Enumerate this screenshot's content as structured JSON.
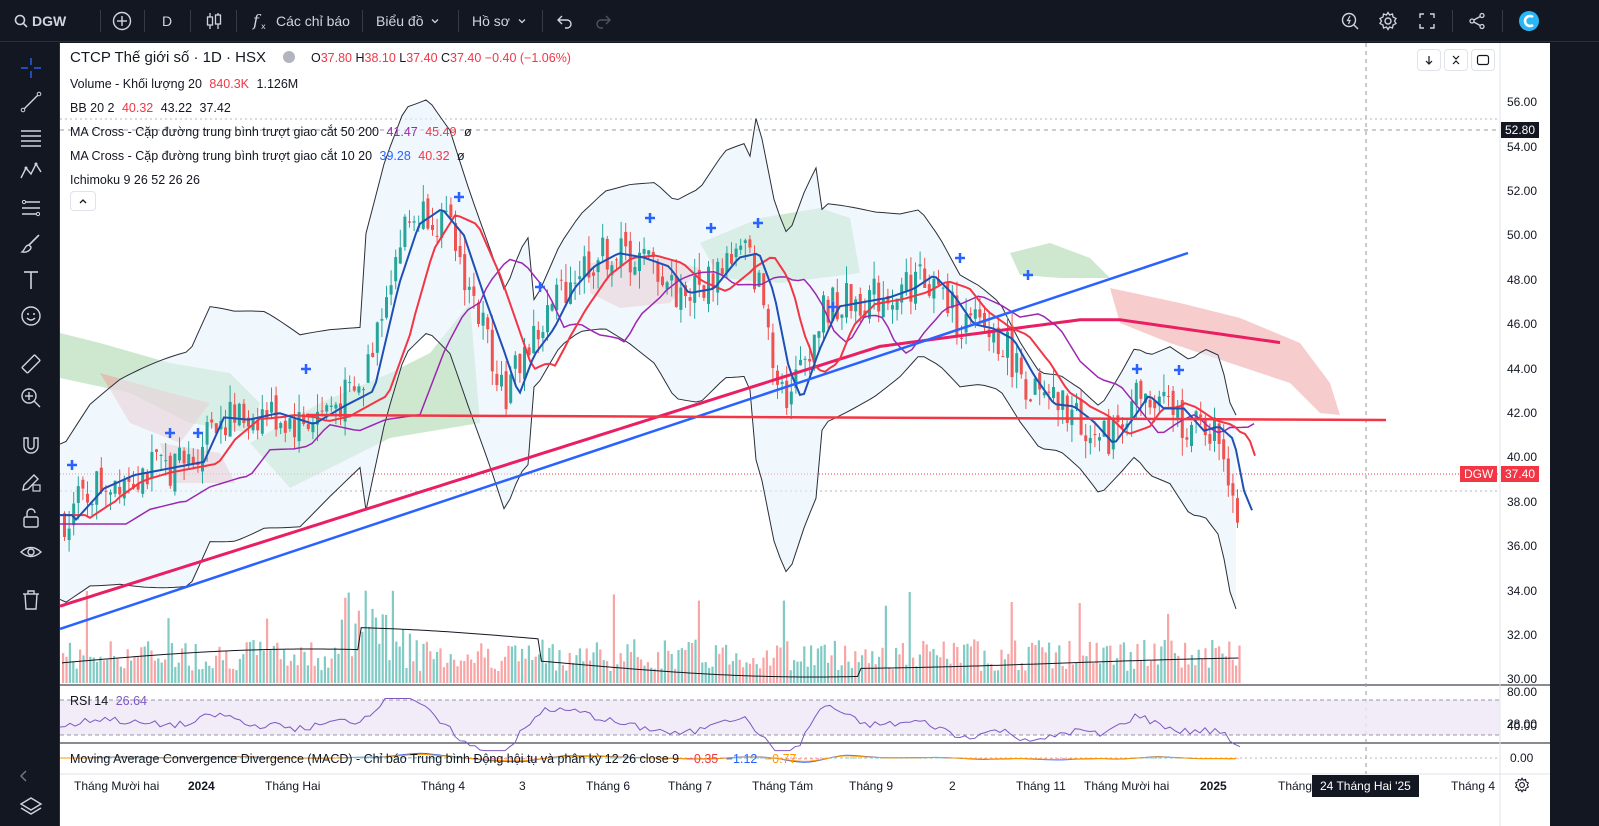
{
  "topbar": {
    "symbol": "DGW",
    "interval": "D",
    "indicators_label": "Các chỉ báo",
    "chart_type_label": "Biểu đồ",
    "profile_label": "Hồ sơ"
  },
  "legend": {
    "title": "CTCP Thế giới số · 1D · HSX",
    "ohlc": {
      "o_label": "O",
      "o": "37.80",
      "h_label": "H",
      "h": "38.10",
      "l_label": "L",
      "l": "37.40",
      "c_label": "C",
      "c": "37.40",
      "change": "−0.40 (−1.06%)"
    },
    "volume": {
      "label": "Volume - Khối lượng 20",
      "v1": "840.3K",
      "v2": "1.126M"
    },
    "bb": {
      "label": "BB 20 2",
      "v1": "40.32",
      "v2": "43.22",
      "v3": "37.42"
    },
    "ma1": {
      "label": "MA Cross - Cặp đường trung bình trượt giao cắt 50 200",
      "v1": "41.47",
      "v2": "45.49",
      "sym": "ø"
    },
    "ma2": {
      "label": "MA Cross - Cặp đường trung bình trượt giao cắt 10 20",
      "v1": "39.28",
      "v2": "40.32",
      "sym": "ø"
    },
    "ichimoku": {
      "label": "Ichimoku 9 26 52 26 26"
    }
  },
  "price_axis": {
    "labels": [
      "56.00",
      "54.00",
      "52.00",
      "50.00",
      "48.00",
      "46.00",
      "44.00",
      "42.00",
      "40.00",
      "38.00",
      "36.00",
      "34.00",
      "32.00",
      "30.00",
      "28.00"
    ],
    "crosshair_value": "52.80",
    "symbol_tag": "DGW",
    "last_price": "37.40"
  },
  "rsi": {
    "label": "RSI 14",
    "value": "26.64",
    "axis": [
      "80.00",
      "40.00"
    ]
  },
  "macd": {
    "label": "Moving Average Convergence Divergence (MACD) - Chỉ báo Trung bình Động hội tụ và phân kỳ 12 26 close 9",
    "v1": "−0.35",
    "v2": "−1.12",
    "v3": "−0.77",
    "axis": "0.00"
  },
  "time_axis": {
    "labels": [
      "Tháng Mười hai",
      "2024",
      "Tháng Hai",
      "Tháng 4",
      "3",
      "Tháng 6",
      "Tháng 7",
      "Tháng Tám",
      "Tháng 9",
      "2",
      "Tháng 11",
      "Tháng Mười hai",
      "2025",
      "Tháng",
      "Tháng 4"
    ],
    "crosshair_date": "24 Tháng Hai '25"
  },
  "colors": {
    "up": "#26a69a",
    "down": "#ef5350",
    "ma200": "#e91e63",
    "trend": "#2962ff",
    "ma_red": "#f23645",
    "ma_blue": "#1e4fb3",
    "ma_purple": "#9c27b0"
  }
}
